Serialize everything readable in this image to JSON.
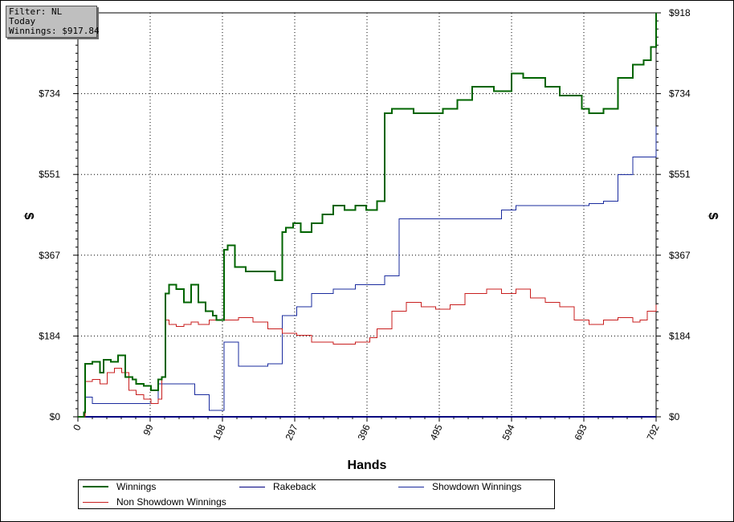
{
  "info_box": {
    "filter": "Filter: NL",
    "period": "Today",
    "winnings": "Winnings: $917.84"
  },
  "colors": {
    "winnings": "#006400",
    "rakeback": "#000080",
    "showdown": "#1a2b9e",
    "non_showdown": "#c81e1e"
  },
  "chart_data": {
    "type": "line",
    "title": "",
    "xlabel": "Hands",
    "ylabel": "$",
    "xlim": [
      0,
      792
    ],
    "ylim": [
      0,
      918
    ],
    "x_ticks": [
      "0",
      "99",
      "198",
      "297",
      "396",
      "495",
      "594",
      "693",
      "792"
    ],
    "y_ticks": [
      "$0",
      "$184",
      "$367",
      "$551",
      "$734",
      "$918"
    ],
    "grid": true,
    "legend_position": "bottom",
    "series": [
      {
        "name": "Winnings",
        "x": [
          0,
          8,
          10,
          20,
          30,
          35,
          45,
          55,
          65,
          75,
          80,
          90,
          100,
          110,
          115,
          120,
          125,
          135,
          145,
          155,
          165,
          175,
          185,
          190,
          200,
          205,
          215,
          220,
          230,
          250,
          270,
          280,
          285,
          295,
          305,
          320,
          335,
          350,
          365,
          380,
          395,
          410,
          420,
          430,
          460,
          500,
          520,
          540,
          570,
          594,
          610,
          640,
          660,
          690,
          700,
          720,
          740,
          760,
          775,
          785,
          792
        ],
        "y": [
          0,
          10,
          120,
          125,
          100,
          130,
          125,
          140,
          90,
          85,
          75,
          70,
          60,
          85,
          90,
          280,
          300,
          290,
          260,
          300,
          260,
          240,
          230,
          220,
          380,
          390,
          340,
          340,
          330,
          330,
          310,
          420,
          430,
          440,
          420,
          440,
          460,
          480,
          470,
          480,
          470,
          490,
          690,
          700,
          690,
          700,
          720,
          750,
          740,
          780,
          770,
          750,
          730,
          700,
          690,
          700,
          770,
          800,
          810,
          840,
          918
        ]
      },
      {
        "name": "Rakeback",
        "x": [
          0,
          792
        ],
        "y": [
          0,
          0
        ]
      },
      {
        "name": "Showdown Winnings",
        "x": [
          0,
          10,
          20,
          40,
          60,
          80,
          100,
          110,
          140,
          160,
          170,
          180,
          200,
          220,
          240,
          260,
          280,
          300,
          320,
          350,
          380,
          400,
          420,
          440,
          460,
          500,
          530,
          560,
          580,
          600,
          640,
          680,
          700,
          720,
          740,
          760,
          780,
          792
        ],
        "y": [
          0,
          45,
          30,
          30,
          30,
          30,
          30,
          75,
          75,
          50,
          50,
          15,
          170,
          115,
          115,
          120,
          230,
          250,
          280,
          290,
          300,
          300,
          320,
          450,
          450,
          450,
          450,
          450,
          470,
          480,
          480,
          480,
          485,
          490,
          550,
          590,
          590,
          660
        ]
      },
      {
        "name": "Non Showdown Winnings",
        "x": [
          0,
          10,
          20,
          30,
          40,
          50,
          60,
          70,
          80,
          90,
          100,
          110,
          115,
          120,
          125,
          135,
          145,
          155,
          165,
          180,
          200,
          220,
          240,
          260,
          280,
          300,
          320,
          350,
          380,
          400,
          410,
          430,
          450,
          470,
          490,
          510,
          530,
          560,
          580,
          600,
          620,
          640,
          660,
          680,
          700,
          720,
          740,
          760,
          770,
          780,
          792
        ],
        "y": [
          0,
          80,
          85,
          75,
          100,
          110,
          100,
          60,
          50,
          40,
          30,
          40,
          90,
          220,
          210,
          205,
          210,
          215,
          210,
          220,
          220,
          225,
          215,
          200,
          190,
          185,
          170,
          165,
          170,
          180,
          200,
          240,
          260,
          250,
          245,
          255,
          280,
          290,
          280,
          290,
          270,
          260,
          250,
          220,
          210,
          220,
          225,
          215,
          220,
          240,
          255
        ]
      }
    ]
  },
  "legend": {
    "winnings": "Winnings",
    "rakeback": "Rakeback",
    "showdown": "Showdown Winnings",
    "non_showdown": "Non Showdown Winnings"
  }
}
